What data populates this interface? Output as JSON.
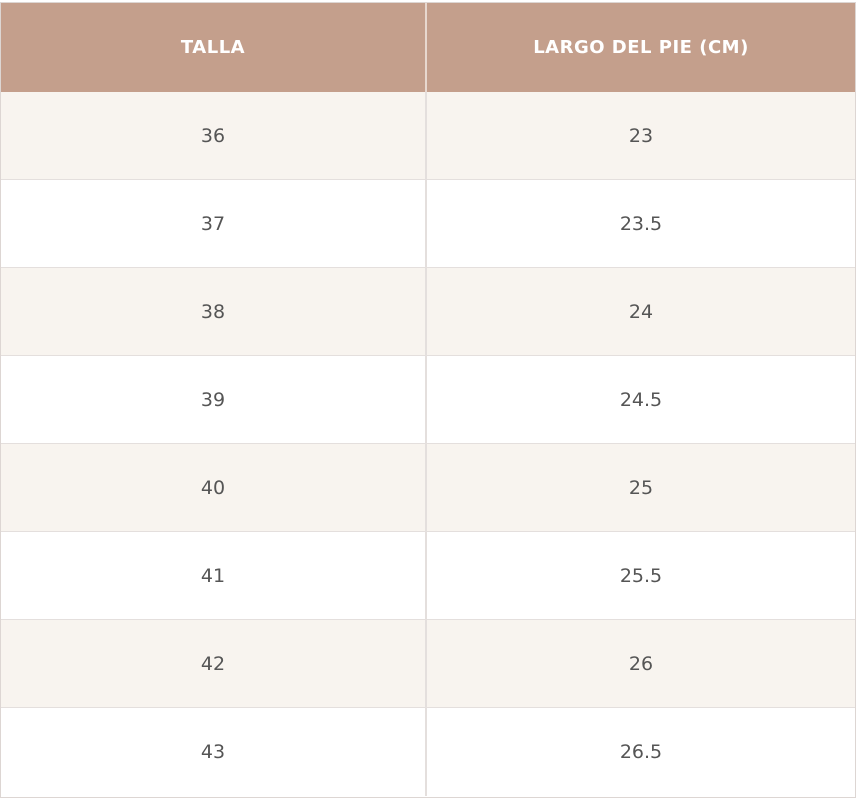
{
  "table": {
    "header": [
      "TALLA",
      "LARGO DEL PIE (CM)"
    ],
    "rows": [
      [
        "36",
        "23"
      ],
      [
        "37",
        "23.5"
      ],
      [
        "38",
        "24"
      ],
      [
        "39",
        "24.5"
      ],
      [
        "40",
        "25"
      ],
      [
        "41",
        "25.5"
      ],
      [
        "42",
        "26"
      ],
      [
        "43",
        "26.5"
      ]
    ]
  }
}
